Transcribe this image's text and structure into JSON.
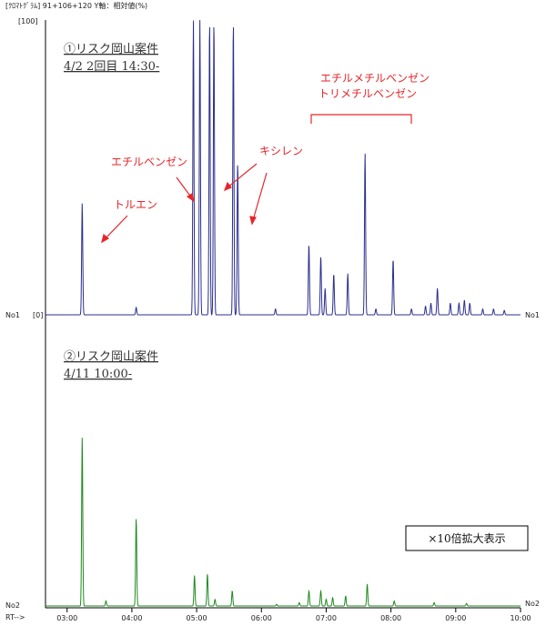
{
  "header": "[ｸﾛﾏﾄｸﾞﾗﾑ]  91+106+120  Y軸：相対値(%)",
  "y_top_label": "[100]",
  "y_zero_label": "[0]",
  "xaxis_label": "RT-->",
  "colors": {
    "series1": "#2b2f8f",
    "series2": "#1e8a1e",
    "annotation": "#e8242a",
    "axis": "#000000"
  },
  "chart_data": [
    {
      "type": "line",
      "trace_label": "No1",
      "title_lines": [
        "①リスク岡山案件",
        "4/2 2回目 14:30-"
      ],
      "xlim": [
        "02:40",
        "10:00"
      ],
      "ylim": [
        0,
        100
      ],
      "x_ticks": [
        "03:00",
        "04:00",
        "05:00",
        "06:00",
        "07:00",
        "08:00",
        "09:00",
        "10:00"
      ],
      "peaks": [
        {
          "x": "03:14",
          "y": 38
        },
        {
          "x": "04:04",
          "y": 2.5
        },
        {
          "x": "04:57",
          "y": 100
        },
        {
          "x": "05:03",
          "y": 100
        },
        {
          "x": "05:12",
          "y": 100
        },
        {
          "x": "05:16",
          "y": 100
        },
        {
          "x": "05:34",
          "y": 100
        },
        {
          "x": "05:38",
          "y": 52
        },
        {
          "x": "06:13",
          "y": 2
        },
        {
          "x": "06:44",
          "y": 24
        },
        {
          "x": "06:55",
          "y": 20
        },
        {
          "x": "06:59",
          "y": 9
        },
        {
          "x": "07:07",
          "y": 14
        },
        {
          "x": "07:20",
          "y": 14
        },
        {
          "x": "07:36",
          "y": 55
        },
        {
          "x": "07:46",
          "y": 2
        },
        {
          "x": "08:02",
          "y": 19
        },
        {
          "x": "08:19",
          "y": 2
        },
        {
          "x": "08:32",
          "y": 3
        },
        {
          "x": "08:37",
          "y": 4
        },
        {
          "x": "08:43",
          "y": 9
        },
        {
          "x": "08:55",
          "y": 4
        },
        {
          "x": "09:03",
          "y": 4
        },
        {
          "x": "09:08",
          "y": 5
        },
        {
          "x": "09:13",
          "y": 4
        },
        {
          "x": "09:25",
          "y": 2
        },
        {
          "x": "09:35",
          "y": 2
        },
        {
          "x": "09:45",
          "y": 1.5
        }
      ],
      "annotations": [
        {
          "text": "トルエン"
        },
        {
          "text": "エチルベンゼン"
        },
        {
          "text": "キシレン"
        },
        {
          "text": "エチルメチルベンゼン"
        },
        {
          "text": "トリメチルベンゼン"
        }
      ]
    },
    {
      "type": "line",
      "trace_label": "No2",
      "title_lines": [
        "②リスク岡山案件",
        "4/11 10:00-"
      ],
      "xlim": [
        "02:40",
        "10:00"
      ],
      "ylim": [
        0,
        100
      ],
      "note_box": "×10倍拡大表示",
      "peaks": [
        {
          "x": "03:14",
          "y": 100
        },
        {
          "x": "03:36",
          "y": 3
        },
        {
          "x": "04:04",
          "y": 52
        },
        {
          "x": "04:58",
          "y": 18
        },
        {
          "x": "05:10",
          "y": 19
        },
        {
          "x": "05:17",
          "y": 4
        },
        {
          "x": "05:33",
          "y": 9
        },
        {
          "x": "06:14",
          "y": 1
        },
        {
          "x": "06:35",
          "y": 2
        },
        {
          "x": "06:44",
          "y": 9
        },
        {
          "x": "06:55",
          "y": 9
        },
        {
          "x": "07:00",
          "y": 4
        },
        {
          "x": "07:06",
          "y": 5
        },
        {
          "x": "07:18",
          "y": 6
        },
        {
          "x": "07:38",
          "y": 13
        },
        {
          "x": "08:03",
          "y": 3
        },
        {
          "x": "08:40",
          "y": 2
        },
        {
          "x": "09:10",
          "y": 1.5
        }
      ]
    }
  ]
}
